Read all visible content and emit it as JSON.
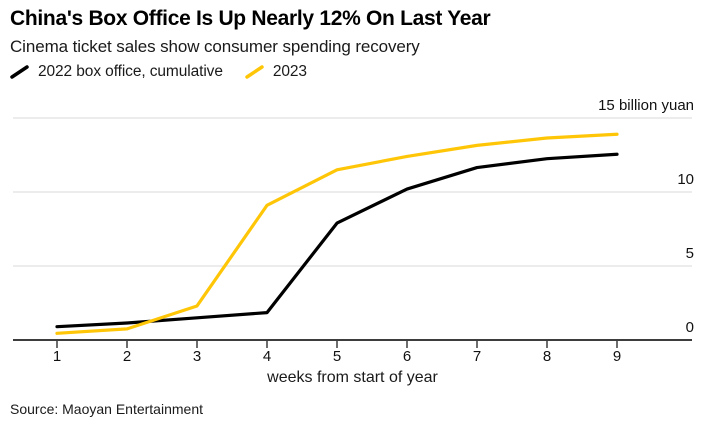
{
  "header": {
    "title": "China's Box Office Is Up Nearly 12% On Last Year",
    "subtitle": "Cinema ticket sales show consumer spending recovery"
  },
  "legend": {
    "items": [
      {
        "label": "2022 box office, cumulative",
        "color": "#000000"
      },
      {
        "label": "2023",
        "color": "#ffc608"
      }
    ]
  },
  "chart_data": {
    "type": "line",
    "x": [
      1,
      2,
      3,
      4,
      5,
      6,
      7,
      8,
      9
    ],
    "x_tick_labels": [
      "1",
      "2",
      "3",
      "4",
      "5",
      "6",
      "7",
      "8",
      "9"
    ],
    "series": [
      {
        "name": "2022 box office, cumulative",
        "color": "#000000",
        "values": [
          0.9,
          1.15,
          1.5,
          1.85,
          7.9,
          10.2,
          11.65,
          12.25,
          12.55
        ]
      },
      {
        "name": "2023",
        "color": "#ffc608",
        "values": [
          0.45,
          0.75,
          2.3,
          9.1,
          11.5,
          12.4,
          13.15,
          13.65,
          13.9
        ]
      }
    ],
    "xlabel": "weeks from start of year",
    "ylabel": "billion yuan",
    "ylim": [
      0,
      15
    ],
    "y_axis": {
      "tick_values": [
        0,
        5,
        10
      ],
      "tick_labels": [
        "0",
        "5",
        "10"
      ],
      "top_label": {
        "value": 15,
        "text": "15 billion yuan"
      }
    },
    "grid": "horizontal",
    "legend_position": "top-left",
    "colors": {
      "gridline": "#d9d9d9",
      "axis": "#3d3d3d"
    }
  },
  "footer": {
    "source": "Source: Maoyan Entertainment"
  }
}
